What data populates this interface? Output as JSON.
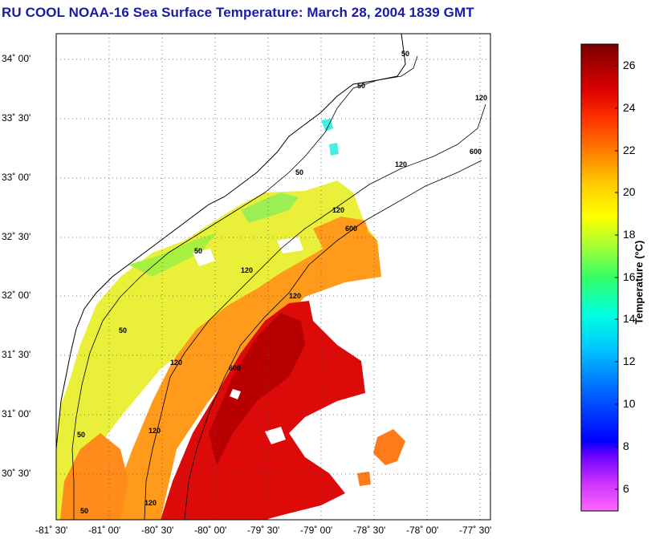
{
  "title": "RU COOL  NOAA-16  Sea Surface Temperature:  March 28, 2004 1839 GMT",
  "map": {
    "lat_labels": [
      "34˚ 00'",
      "33˚ 30'",
      "33˚ 00'",
      "32˚ 30'",
      "32˚ 00'",
      "31˚ 30'",
      "31˚ 00'",
      "30˚ 30'"
    ],
    "lon_labels": [
      "-81˚ 30'",
      "-81˚ 00'",
      "-80˚ 30'",
      "-80˚ 00'",
      "-79˚ 30'",
      "-79˚ 00'",
      "-78˚ 30'",
      "-78˚ 00'",
      "-77˚ 30'"
    ],
    "lat_range": [
      30.22,
      34.22
    ],
    "lon_range": [
      -81.6,
      -77.5
    ],
    "isobath_labels": [
      "50",
      "50",
      "120",
      "600",
      "50",
      "120",
      "600",
      "120",
      "50",
      "120",
      "600",
      "120",
      "50",
      "120",
      "50",
      "120",
      "50",
      "120"
    ]
  },
  "colorbar": {
    "label": "Temperature (°C)",
    "ticks": [
      "26",
      "24",
      "22",
      "20",
      "18",
      "16",
      "14",
      "12",
      "10",
      "8",
      "6"
    ],
    "range": [
      5,
      27
    ],
    "colors": [
      "#ff66ff",
      "#9933ff",
      "#0000ff",
      "#0080ff",
      "#00ffff",
      "#33ff99",
      "#ccff33",
      "#ffff00",
      "#ff9900",
      "#ff3300",
      "#cc0000",
      "#800000"
    ]
  },
  "colors": {
    "title": "#1a1aa6",
    "land": "#ffffff",
    "coast": "#000000"
  }
}
